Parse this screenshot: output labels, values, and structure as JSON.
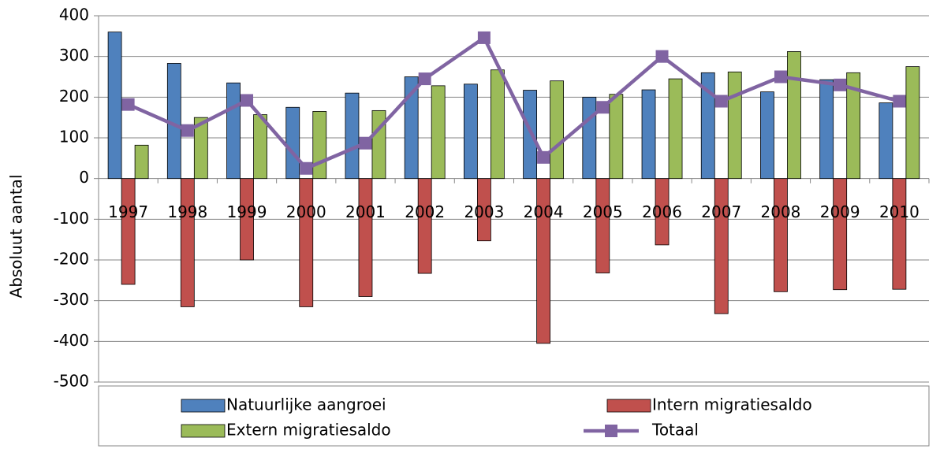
{
  "chart_data": {
    "type": "bar",
    "y_label": "Absoluut aantal",
    "categories": [
      "1997",
      "1998",
      "1999",
      "2000",
      "2001",
      "2002",
      "2003",
      "2004",
      "2005",
      "2006",
      "2007",
      "2008",
      "2009",
      "2010"
    ],
    "series": [
      {
        "name": "Natuurlijke aangroei",
        "color": "#4f81bd",
        "values": [
          360,
          283,
          235,
          175,
          210,
          250,
          232,
          217,
          200,
          218,
          260,
          213,
          243,
          186
        ]
      },
      {
        "name": "Intern migratiesaldo",
        "color": "#c0504d",
        "values": [
          -260,
          -315,
          -200,
          -315,
          -290,
          -233,
          -153,
          -405,
          -232,
          -163,
          -332,
          -278,
          -273,
          -272
        ]
      },
      {
        "name": "Extern migratiesaldo",
        "color": "#9bbb59",
        "values": [
          82,
          150,
          157,
          165,
          167,
          228,
          267,
          240,
          207,
          245,
          262,
          312,
          260,
          275
        ]
      },
      {
        "name": "Totaal",
        "color": "#8064a2",
        "type": "line",
        "values": [
          182,
          118,
          192,
          25,
          87,
          245,
          346,
          52,
          175,
          300,
          190,
          250,
          230,
          190
        ]
      }
    ],
    "ylim": [
      -500,
      400
    ],
    "yticks": [
      -500,
      -400,
      -300,
      -200,
      -100,
      0,
      100,
      200,
      300,
      400
    ],
    "grid": true,
    "legend": "bottom"
  }
}
